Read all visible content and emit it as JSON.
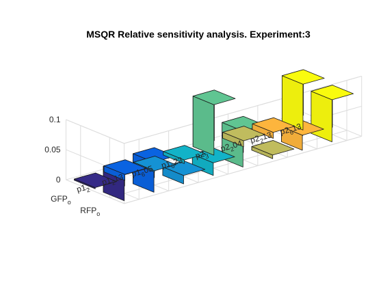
{
  "chart_data": {
    "type": "bar3",
    "title": "MSQR Relative sensitivity analysis. Experiment:3",
    "xlabel": "",
    "ylabel": "",
    "zlabel": "",
    "zlim": [
      0,
      0.1
    ],
    "z_ticks": [
      "0",
      "0.05",
      "0.1"
    ],
    "grid": true,
    "parameters": [
      "p1_2",
      "p1_213",
      "p1_605",
      "p1_623",
      "p2_3",
      "p2_204",
      "p2_213",
      "p2_613"
    ],
    "parameter_labels": [
      {
        "base": "p1",
        "sub": "2",
        "suffix": ""
      },
      {
        "base": "p1",
        "sub": "2",
        "suffix": "13"
      },
      {
        "base": "p1",
        "sub": "6",
        "suffix": "05"
      },
      {
        "base": "p1",
        "sub": "6",
        "suffix": "23"
      },
      {
        "base": "p2",
        "sub": "3",
        "suffix": ""
      },
      {
        "base": "p2",
        "sub": "2",
        "suffix": "04"
      },
      {
        "base": "p2",
        "sub": "2",
        "suffix": "13"
      },
      {
        "base": "p2",
        "sub": "6",
        "suffix": "13"
      }
    ],
    "outputs": [
      "RFP_o",
      "GFP_o"
    ],
    "output_labels": [
      {
        "base": "RFP",
        "sub": "o"
      },
      {
        "base": "GFP",
        "sub": "o"
      }
    ],
    "series": [
      {
        "output": "RFP_o",
        "values": [
          0.043,
          0.05,
          0.014,
          0.021,
          0.06,
          0.006,
          0.025,
          0.07
        ]
      },
      {
        "output": "GFP_o",
        "values": [
          0.002,
          0.01,
          0.002,
          0.006,
          0.084,
          0.01,
          0.01,
          0.076
        ]
      }
    ],
    "colors": [
      "#352A87",
      "#0A63E1",
      "#1592D4",
      "#12B3C8",
      "#60C592",
      "#C0BC5E",
      "#FDB53D",
      "#F9FB0E"
    ]
  }
}
